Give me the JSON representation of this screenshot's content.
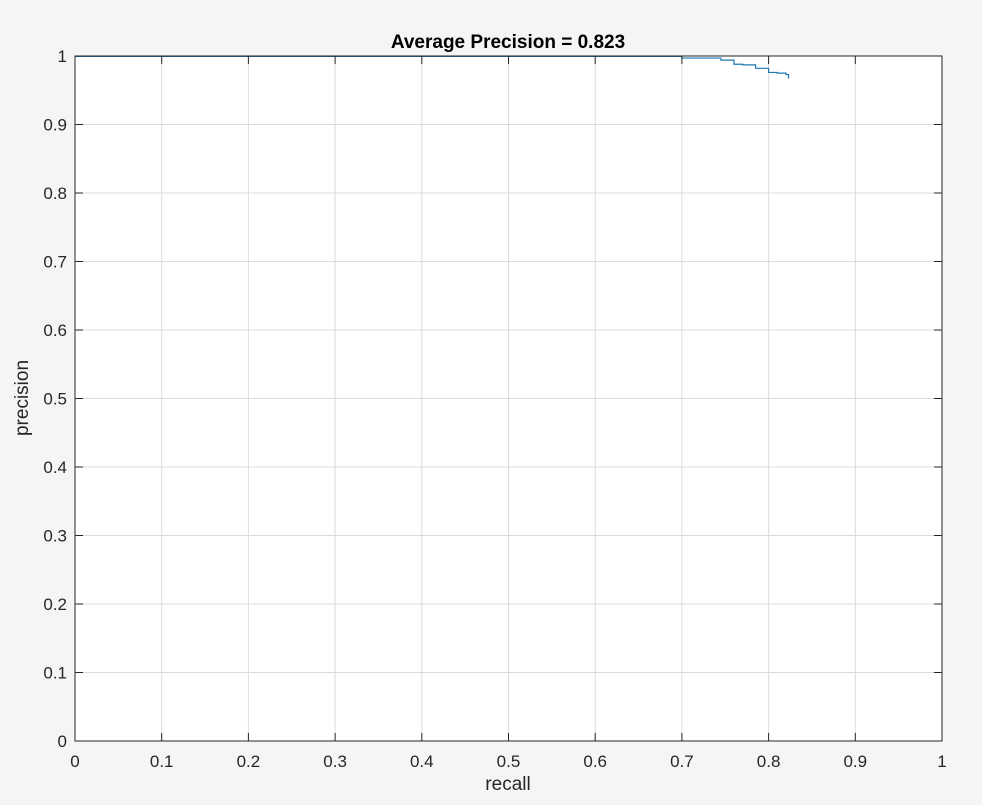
{
  "chart_data": {
    "type": "line",
    "title": "Average Precision = 0.823",
    "xlabel": "recall",
    "ylabel": "precision",
    "xlim": [
      0,
      1
    ],
    "ylim": [
      0,
      1
    ],
    "grid": true,
    "x_ticks": [
      0,
      0.1,
      0.2,
      0.3,
      0.4,
      0.5,
      0.6,
      0.7,
      0.8,
      0.9,
      1
    ],
    "x_tick_labels": [
      "0",
      "0.1",
      "0.2",
      "0.3",
      "0.4",
      "0.5",
      "0.6",
      "0.7",
      "0.8",
      "0.9",
      "1"
    ],
    "y_ticks": [
      0,
      0.1,
      0.2,
      0.3,
      0.4,
      0.5,
      0.6,
      0.7,
      0.8,
      0.9,
      1
    ],
    "y_tick_labels": [
      "0",
      "0.1",
      "0.2",
      "0.3",
      "0.4",
      "0.5",
      "0.6",
      "0.7",
      "0.8",
      "0.9",
      "1"
    ],
    "colors": {
      "line": "#1f77b4",
      "axes": "#262626",
      "grid": "#dcdcdc",
      "plot_bg": "#ffffff"
    },
    "series": [
      {
        "x": [
          0,
          0.7,
          0.7,
          0.745,
          0.745,
          0.76,
          0.76,
          0.77,
          0.77,
          0.785,
          0.785,
          0.8,
          0.8,
          0.81,
          0.81,
          0.82,
          0.82,
          0.823,
          0.823
        ],
        "y": [
          0.9995,
          0.9995,
          0.997,
          0.997,
          0.994,
          0.994,
          0.988,
          0.988,
          0.987,
          0.987,
          0.982,
          0.982,
          0.976,
          0.976,
          0.975,
          0.975,
          0.973,
          0.973,
          0.967
        ]
      }
    ]
  }
}
